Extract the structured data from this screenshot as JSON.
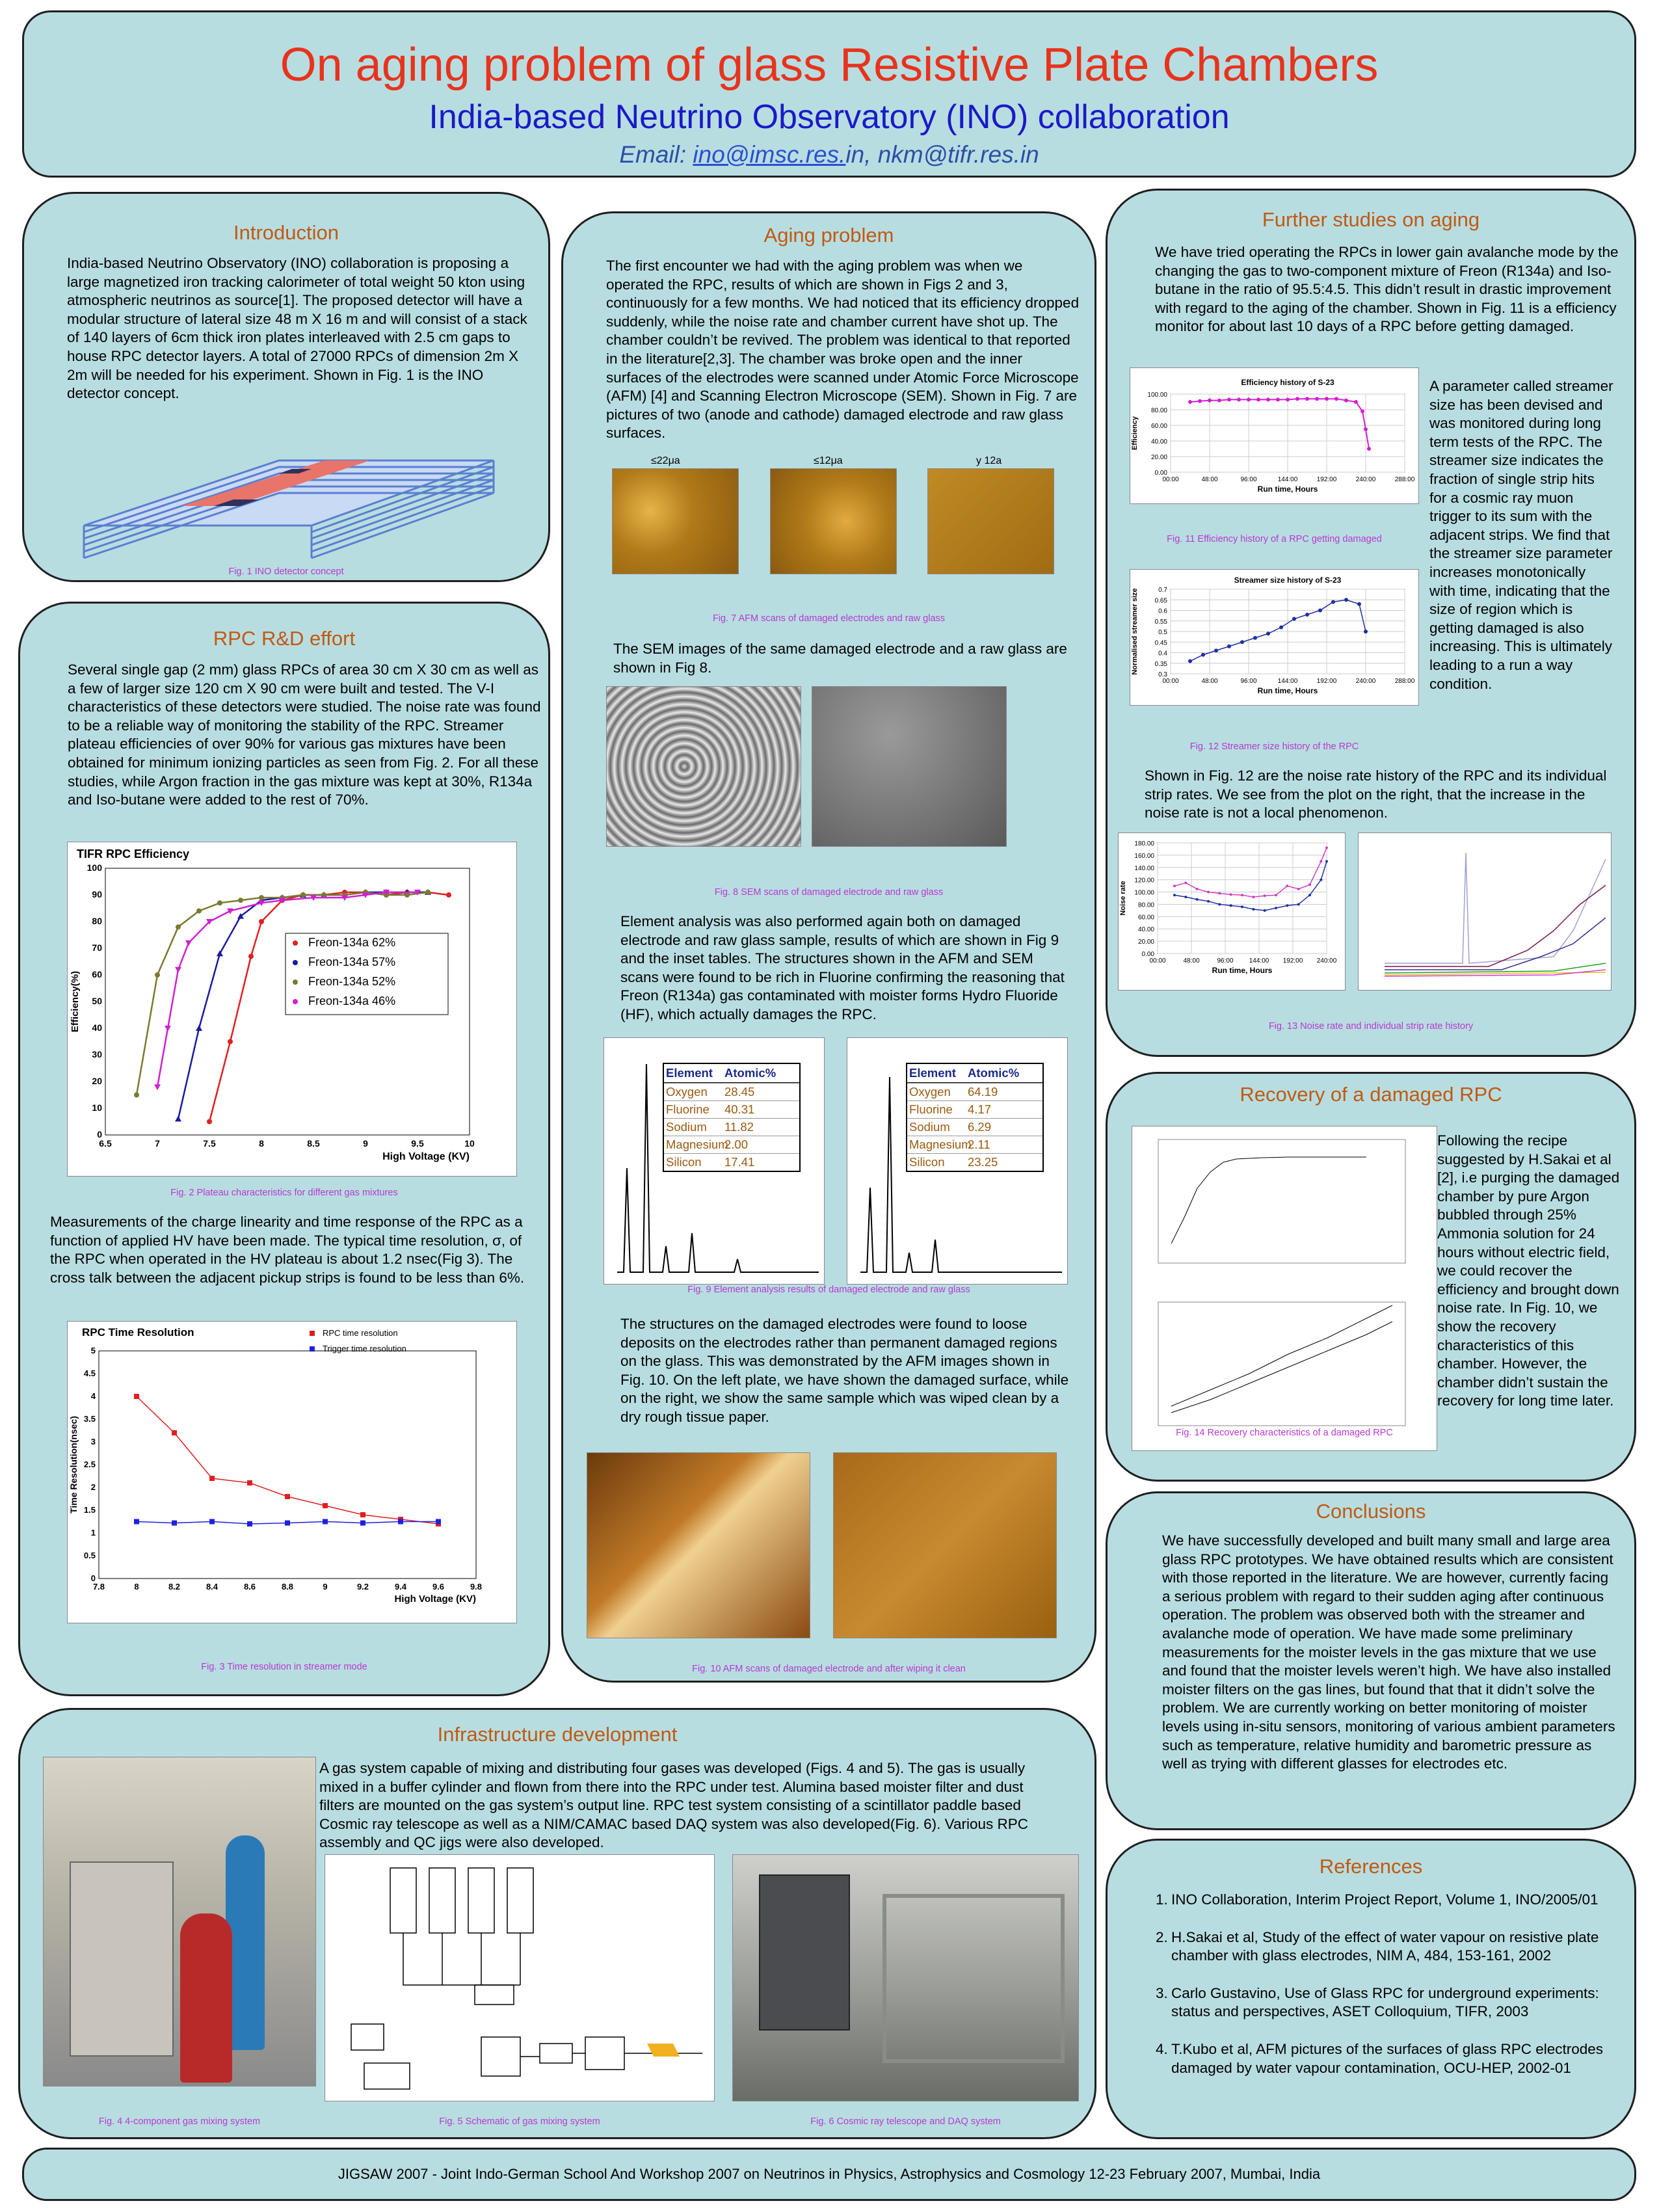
{
  "header": {
    "title": "On aging problem of glass Resistive Plate Chambers",
    "subtitle": "India-based Neutrino Observatory (INO) collaboration",
    "email_prefix": "Email: ",
    "email_link": "ino@imsc.res.",
    "email_rest": "in, nkm@tifr.res.in"
  },
  "intro": {
    "title": "Introduction",
    "text": "India-based Neutrino Observatory (INO) collaboration is proposing a large magnetized iron tracking calorimeter of total weight 50 kton using atmospheric neutrinos as source[1]. The proposed detector will have a modular structure of lateral size 48 m X 16 m and will consist of a stack of 140 layers of 6cm thick iron plates interleaved with 2.5 cm gaps to house RPC detector layers. A total of 27000 RPCs of dimension 2m X 2m will be needed for his experiment. Shown in Fig. 1 is the INO detector concept.",
    "fig_caption": "Fig. 1 INO detector concept"
  },
  "rpc": {
    "title": "RPC R&D effort",
    "text1": "Several single gap (2 mm) glass RPCs of area 30 cm X 30 cm as well as a few of larger size 120 cm X 90 cm were built and tested. The V-I characteristics of these detectors were studied. The noise rate was found to be a reliable way of monitoring the stability of the RPC. Streamer plateau efficiencies of over 90% for various gas mixtures have been obtained for minimum ionizing particles as seen from Fig. 2. For all these studies, while Argon fraction in the gas mixture was kept at 30%, R134a and Iso-butane were added to the rest of 70%.",
    "fig2_caption": "Fig. 2 Plateau characteristics for different gas mixtures",
    "text2": "Measurements of the charge linearity and time response of the RPC as a function of applied HV have been made. The typical time resolution, σ, of the RPC when operated in the HV plateau is about 1.2 nsec(Fig 3). The cross talk between the adjacent pickup strips is found to be less than 6%.",
    "fig3_caption": "Fig. 3 Time resolution in streamer mode"
  },
  "aging": {
    "title": "Aging problem",
    "text1": "The first encounter we had with the aging problem was when we operated the RPC, results of which are shown in Figs 2 and 3, continuously for a few months. We had noticed that its  efficiency dropped suddenly, while the noise rate and chamber current have shot up. The chamber couldn’t be revived. The problem was identical to that reported in the literature[2,3]. The chamber was broke open and the inner surfaces of the electrodes were scanned under Atomic Force Microscope (AFM) [4] and Scanning Electron Microscope (SEM). Shown in Fig. 7 are pictures of two (anode and cathode) damaged electrode and raw glass surfaces.",
    "afm_labels": [
      "≤22μa",
      "≤12μa",
      "y 12a"
    ],
    "fig7_caption": "Fig. 7 AFM scans of damaged  electrodes and raw glass",
    "text2": "The SEM images of the same damaged electrode and a raw glass are shown in Fig 8.",
    "fig8_caption": "Fig. 8 SEM scans of damaged  electrode and raw glass",
    "text3": "Element analysis was also performed again both on damaged electrode and raw glass sample, results of which are shown in Fig 9 and the inset tables. The structures shown in the AFM and SEM scans were found to be rich in Fluorine confirming the reasoning that Freon (R134a) gas contaminated with moister forms Hydro Fluoride (HF), which actually damages the RPC.",
    "fig9_caption": "Fig. 9 Element analysis results of damaged  electrode and raw glass",
    "text4": "The structures on the damaged electrodes were found to loose deposits on the electrodes rather than permanent damaged regions on the glass. This was demonstrated by the AFM images shown in Fig. 10. On the left plate, we have shown the damaged surface, while on the right, we show the same sample which was wiped clean by a dry rough tissue paper.",
    "fig10_caption": "Fig. 10 AFM scans of  damaged  electrode and after wiping it clean"
  },
  "further": {
    "title": "Further studies on aging",
    "text1": "We have tried operating the RPCs in lower gain avalanche mode by the changing the gas to two-component mixture of Freon (R134a) and Iso-butane in the ratio of 95.5:4.5. This didn’t result in drastic improvement with regard to the aging of the chamber. Shown in Fig. 11 is a efficiency monitor for about last 10 days of a RPC before getting damaged.",
    "text_side": "A parameter called streamer size has been devised and was monitored during long term tests of the RPC. The streamer size indicates the fraction of single strip hits for a cosmic ray muon trigger to its sum with the adjacent strips. We find that the streamer size parameter increases monotonically with time, indicating that the size of region which is getting damaged is also increasing. This is ultimately leading to a run a way condition.",
    "fig11_caption": "Fig. 11 Efficiency history of a RPC getting damaged",
    "fig12_caption": "Fig. 12 Streamer size history of the RPC",
    "text2": "Shown in Fig. 12 are the noise rate history of the RPC and its individual strip rates. We see from the plot on the right, that the increase in the noise rate is not a local phenomenon.",
    "fig13_caption": "Fig. 13 Noise rate and individual strip rate history"
  },
  "recovery": {
    "title": "Recovery of a damaged RPC",
    "text": "Following the recipe suggested by H.Sakai et al [2], i.e purging the damaged chamber by pure Argon bubbled through 25% Ammonia solution for 24 hours without electric field, we could recover the efficiency and brought down noise rate. In Fig. 10, we show the recovery characteristics of this chamber. However, the chamber didn’t sustain the recovery for long time later.",
    "fig14_caption": "Fig. 14 Recovery characteristics of a damaged RPC"
  },
  "conclusions": {
    "title": "Conclusions",
    "text": "We have successfully developed and built many small and large area glass RPC prototypes. We have obtained results which are consistent with those reported in the literature. We are however, currently facing a serious problem with regard to their sudden aging after continuous operation. The problem was observed both with the streamer and avalanche mode of operation. We have made some preliminary measurements for the moister levels in the gas mixture that we use and found that the moister levels weren’t high. We have also installed moister filters on the gas lines, but found that that it didn’t solve the problem. We are currently working on better monitoring of moister levels using in-situ sensors, monitoring of various ambient parameters such as temperature, relative humidity and barometric pressure as well as trying with different glasses for electrodes etc."
  },
  "references": {
    "title": "References",
    "items": [
      "INO Collaboration, Interim Project Report, Volume 1, INO/2005/01",
      "H.Sakai et al, Study of the effect of water vapour on resistive plate chamber with glass electrodes, NIM A, 484, 153-161, 2002",
      "Carlo Gustavino, Use of Glass RPC for underground experiments: status and perspectives, ASET Colloquium, TIFR, 2003",
      "T.Kubo et al, AFM pictures of the surfaces of glass RPC electrodes damaged by water vapour contamination, OCU-HEP, 2002-01"
    ]
  },
  "infra": {
    "title": "Infrastructure development",
    "text": "A gas system capable of mixing and distributing four gases was developed (Figs. 4 and 5). The gas is usually mixed in a buffer cylinder and flown from there into the RPC under test. Alumina based moister filter and dust filters are mounted on the gas system’s output line. RPC test system consisting of a scintillator paddle based Cosmic ray telescope as well as a NIM/CAMAC based DAQ system was also developed(Fig. 6). Various RPC assembly and QC jigs were also developed.",
    "fig4_caption": "Fig. 4 4-component gas mixing system",
    "fig5_caption": "Fig. 5 Schematic of gas mixing system",
    "fig6_caption": "Fig. 6 Cosmic ray telescope and DAQ system"
  },
  "footer": {
    "text": "JIGSAW 2007 - Joint Indo-German School And Workshop 2007 on Neutrinos in Physics, Astrophysics and Cosmology 12-23 February 2007, Mumbai, India"
  },
  "chart_data": [
    {
      "type": "scatter",
      "title": "TIFR RPC Efficiency",
      "xlabel": "High Voltage (KV)",
      "ylabel": "Efficiency(%)",
      "xlim": [
        6.5,
        10
      ],
      "ylim": [
        0,
        100
      ],
      "xticks": [
        "6.5",
        "7",
        "7.5",
        "8",
        "8.5",
        "9",
        "9.5",
        "10"
      ],
      "yticks": [
        "0",
        "10",
        "20",
        "30",
        "40",
        "50",
        "60",
        "70",
        "80",
        "90",
        "100"
      ],
      "series": [
        {
          "name": "Freon-134a  62%",
          "color": "#e02020",
          "x": [
            7.5,
            7.7,
            7.9,
            8.0,
            8.2,
            8.4,
            8.6,
            8.8,
            9.0,
            9.2,
            9.4,
            9.6,
            9.8
          ],
          "y": [
            5,
            35,
            67,
            80,
            88,
            90,
            90,
            91,
            91,
            90,
            91,
            91,
            90
          ]
        },
        {
          "name": "Freon-134a  57%",
          "color": "#1a1aa0",
          "x": [
            7.2,
            7.4,
            7.6,
            7.8,
            8.0,
            8.2,
            8.4,
            8.6,
            8.8,
            9.0,
            9.2,
            9.4,
            9.6
          ],
          "y": [
            6,
            40,
            68,
            82,
            88,
            89,
            90,
            90,
            90,
            91,
            91,
            91,
            91
          ]
        },
        {
          "name": "Freon-134a  52%",
          "color": "#7a7a30",
          "x": [
            6.8,
            7.0,
            7.2,
            7.4,
            7.6,
            7.8,
            8.0,
            8.2,
            8.4,
            8.6,
            8.8,
            9.0,
            9.2,
            9.4,
            9.6
          ],
          "y": [
            15,
            60,
            78,
            84,
            87,
            88,
            89,
            89,
            90,
            90,
            90,
            91,
            90,
            90,
            91
          ]
        },
        {
          "name": "Freon-134a  46%",
          "color": "#d020d0",
          "x": [
            7.0,
            7.1,
            7.2,
            7.3,
            7.5,
            7.7,
            8.0,
            8.2,
            8.5,
            8.8,
            9.0,
            9.2,
            9.5
          ],
          "y": [
            18,
            40,
            62,
            72,
            80,
            84,
            87,
            88,
            89,
            89,
            90,
            91,
            91
          ]
        }
      ]
    },
    {
      "type": "scatter",
      "title": "RPC Time Resolution",
      "xlabel": "High Voltage (KV)",
      "ylabel": "Time Resolution(nsec)",
      "xlim": [
        7.8,
        9.8
      ],
      "ylim": [
        0,
        5
      ],
      "xticks": [
        "7.8",
        "8",
        "8.2",
        "8.4",
        "8.6",
        "8.8",
        "9",
        "9.2",
        "9.4",
        "9.6",
        "9.8"
      ],
      "yticks": [
        "0",
        "0.5",
        "1",
        "1.5",
        "2",
        "2.5",
        "3",
        "3.5",
        "4",
        "4.5",
        "5"
      ],
      "legend": [
        "RPC time resolution",
        "Trigger time resolution"
      ],
      "series": [
        {
          "name": "RPC time resolution",
          "color": "#e02020",
          "x": [
            8.0,
            8.2,
            8.4,
            8.6,
            8.8,
            9.0,
            9.2,
            9.4,
            9.6
          ],
          "y": [
            4.0,
            3.2,
            2.2,
            2.1,
            1.8,
            1.6,
            1.4,
            1.3,
            1.2
          ]
        },
        {
          "name": "Trigger time resolution",
          "color": "#2020e0",
          "x": [
            8.0,
            8.2,
            8.4,
            8.6,
            8.8,
            9.0,
            9.2,
            9.4,
            9.6
          ],
          "y": [
            1.25,
            1.22,
            1.25,
            1.2,
            1.22,
            1.25,
            1.22,
            1.25,
            1.25
          ]
        }
      ]
    },
    {
      "type": "line",
      "title": "Efficiency history of S-23",
      "xlabel": "Run time, Hours",
      "ylabel": "Efficiency",
      "xlim": [
        0,
        288
      ],
      "ylim": [
        0,
        100
      ],
      "xticks": [
        "00:00",
        "48:00",
        "96:00",
        "144:00",
        "192:00",
        "240:00",
        "288:00"
      ],
      "yticks": [
        "0.00",
        "20.00",
        "40.00",
        "60.00",
        "80.00",
        "100.00"
      ],
      "x": [
        24,
        36,
        48,
        60,
        72,
        84,
        96,
        108,
        120,
        132,
        144,
        156,
        168,
        180,
        192,
        204,
        216,
        228,
        236,
        240,
        244
      ],
      "y": [
        90,
        91,
        92,
        92,
        93,
        93,
        93,
        93,
        93,
        93,
        93,
        94,
        94,
        94,
        94,
        94,
        92,
        90,
        78,
        55,
        30
      ]
    },
    {
      "type": "line",
      "title": "Streamer size history of S-23",
      "xlabel": "Run time, Hours",
      "ylabel": "Normalised streamer size",
      "xlim": [
        0,
        288
      ],
      "ylim": [
        0.3,
        0.7
      ],
      "xticks": [
        "00:00",
        "48:00",
        "96:00",
        "144:00",
        "192:00",
        "240:00",
        "288:00"
      ],
      "yticks": [
        "0.3",
        "0.35",
        "0.4",
        "0.45",
        "0.5",
        "0.55",
        "0.6",
        "0.65",
        "0.7"
      ],
      "x": [
        24,
        40,
        56,
        72,
        88,
        104,
        120,
        136,
        152,
        168,
        184,
        200,
        216,
        232,
        240
      ],
      "y": [
        0.36,
        0.39,
        0.41,
        0.43,
        0.45,
        0.47,
        0.49,
        0.52,
        0.56,
        0.58,
        0.6,
        0.64,
        0.65,
        0.63,
        0.5
      ]
    },
    {
      "type": "line",
      "title": "",
      "xlabel": "Run time, Hours",
      "ylabel": "Noise rate",
      "xlim": [
        0,
        240
      ],
      "ylim": [
        0,
        180
      ],
      "xticks": [
        "00:00",
        "48:00",
        "96:00",
        "144:00",
        "192:00",
        "240:00"
      ],
      "yticks": [
        "0.00",
        "20.00",
        "40.00",
        "60.00",
        "80.00",
        "100.00",
        "120.00",
        "140.00",
        "160.00",
        "180.00"
      ],
      "series": [
        {
          "name": "",
          "color": "#d040c0",
          "x": [
            24,
            40,
            56,
            72,
            88,
            104,
            120,
            136,
            152,
            168,
            184,
            200,
            216,
            232,
            240
          ],
          "y": [
            110,
            115,
            105,
            100,
            98,
            96,
            95,
            92,
            94,
            95,
            110,
            105,
            112,
            150,
            172
          ]
        },
        {
          "name": "",
          "color": "#2030a0",
          "x": [
            24,
            40,
            56,
            72,
            88,
            104,
            120,
            136,
            152,
            168,
            184,
            200,
            216,
            232,
            240
          ],
          "y": [
            95,
            92,
            88,
            85,
            80,
            78,
            76,
            72,
            70,
            74,
            78,
            80,
            95,
            120,
            150
          ]
        }
      ]
    }
  ]
}
